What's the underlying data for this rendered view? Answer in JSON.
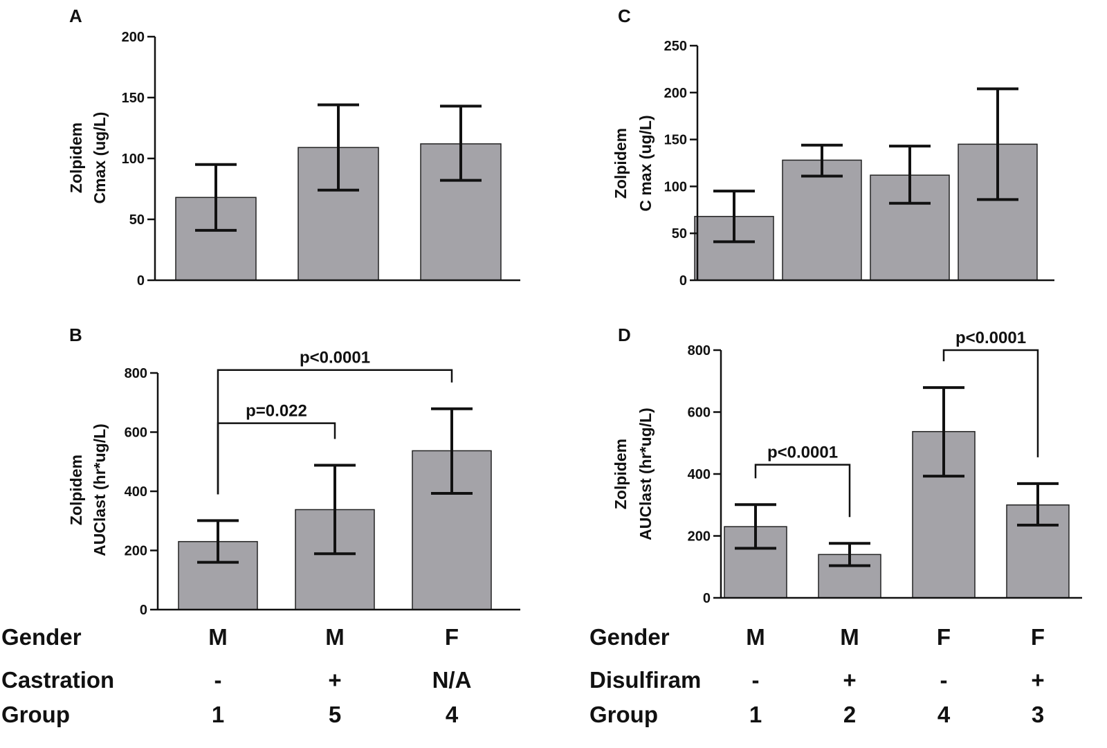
{
  "chart_data": [
    {
      "panel": "A",
      "type": "bar",
      "ylabel": [
        "Zolpidem",
        "Cmax (ug/L)"
      ],
      "ylim": [
        0,
        200
      ],
      "yticks": [
        0,
        50,
        100,
        150,
        200
      ],
      "groups": [
        "1",
        "5",
        "4"
      ],
      "values": [
        68,
        109,
        112
      ],
      "errors": [
        [
          41,
          95
        ],
        [
          74,
          144
        ],
        [
          82,
          143
        ]
      ],
      "significance": []
    },
    {
      "panel": "B",
      "type": "bar",
      "ylabel": [
        "Zolpidem",
        "AUClast  (hr*ug/L)"
      ],
      "ylim": [
        0,
        800
      ],
      "yticks": [
        0,
        200,
        400,
        600,
        800
      ],
      "groups": [
        "1",
        "5",
        "4"
      ],
      "values": [
        230,
        338,
        537
      ],
      "errors": [
        [
          160,
          301
        ],
        [
          189,
          488
        ],
        [
          393,
          679
        ]
      ],
      "significance": [
        {
          "from": 0,
          "to": 2,
          "label": "p<0.0001",
          "level": 810
        },
        {
          "from": 0,
          "to": 1,
          "label": "p=0.022",
          "level": 630
        }
      ]
    },
    {
      "panel": "C",
      "type": "bar",
      "ylabel": [
        "Zolpidem",
        "C max (ug/L)"
      ],
      "ylim": [
        0,
        250
      ],
      "yticks": [
        0,
        50,
        100,
        150,
        200,
        250
      ],
      "groups": [
        "1",
        "2",
        "4",
        "3"
      ],
      "values": [
        68,
        128,
        112,
        145
      ],
      "errors": [
        [
          41,
          95
        ],
        [
          111,
          144
        ],
        [
          82,
          143
        ],
        [
          86,
          204
        ]
      ],
      "significance": []
    },
    {
      "panel": "D",
      "type": "bar",
      "ylabel": [
        "Zolpidem",
        "AUClast  (hr*ug/L)"
      ],
      "ylim": [
        0,
        800
      ],
      "yticks": [
        0,
        200,
        400,
        600,
        800
      ],
      "groups": [
        "1",
        "2",
        "4",
        "3"
      ],
      "values": [
        230,
        140,
        537,
        300
      ],
      "errors": [
        [
          160,
          301
        ],
        [
          104,
          176
        ],
        [
          393,
          679
        ],
        [
          235,
          369
        ]
      ],
      "significance": [
        {
          "from": 0,
          "to": 1,
          "label": "p<0.0001",
          "level": 430
        },
        {
          "from": 2,
          "to": 3,
          "label": "p<0.0001",
          "level": 800
        }
      ]
    }
  ],
  "tables": {
    "left": {
      "rows": [
        {
          "label": "Gender",
          "cells": [
            "M",
            "M",
            "F"
          ]
        },
        {
          "label": "Castration",
          "cells": [
            "-",
            "+",
            "N/A"
          ]
        },
        {
          "label": "Group",
          "cells": [
            "1",
            "5",
            "4"
          ]
        }
      ]
    },
    "right": {
      "rows": [
        {
          "label": "Gender",
          "cells": [
            "M",
            "M",
            "F",
            "F"
          ]
        },
        {
          "label": "Disulfiram",
          "cells": [
            "-",
            "+",
            "-",
            "+"
          ]
        },
        {
          "label": "Group",
          "cells": [
            "1",
            "2",
            "4",
            "3"
          ]
        }
      ]
    }
  },
  "colors": {
    "bar": "#a4a3a8",
    "bar_edge": "#222222",
    "axis": "#111111",
    "error": "#111111"
  }
}
